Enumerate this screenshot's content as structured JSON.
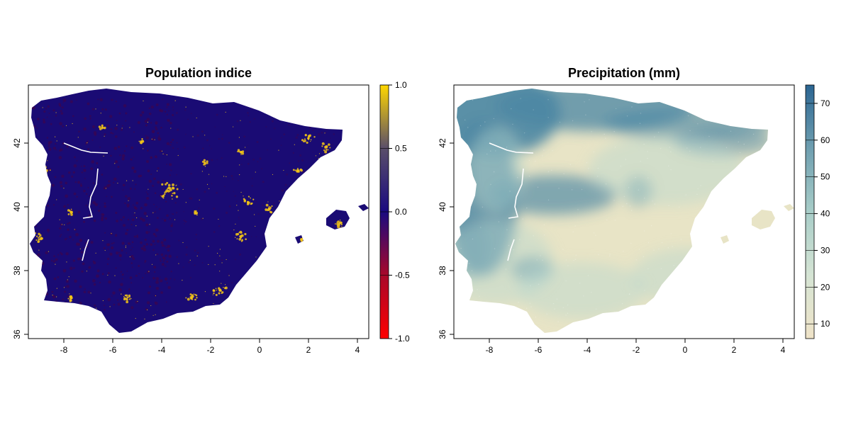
{
  "panels": [
    {
      "title": "Population indice",
      "x_ticks": [
        "-8",
        "-6",
        "-4",
        "-2",
        "0",
        "2",
        "4"
      ],
      "y_ticks": [
        "36",
        "38",
        "40",
        "42"
      ],
      "colorbar": {
        "ticks": [
          "-1.0",
          "-0.5",
          "0.0",
          "0.5",
          "1.0"
        ],
        "colors": [
          "#ff0000",
          "#a8082a",
          "#1a0a80",
          "#5a4e6a",
          "#ffd700"
        ]
      },
      "map_colors": {
        "land": "#1a0b74",
        "dark_patch": "#3a0650",
        "hot": "#f2c418"
      }
    },
    {
      "title": "Precipitation (mm)",
      "x_ticks": [
        "-8",
        "-6",
        "-4",
        "-2",
        "0",
        "2",
        "4"
      ],
      "y_ticks": [
        "36",
        "38",
        "40",
        "42"
      ],
      "colorbar": {
        "ticks": [
          "10",
          "20",
          "30",
          "40",
          "50",
          "60",
          "70"
        ],
        "colors": [
          "#efe3c8",
          "#d5e4d4",
          "#a8cdc8",
          "#6f9fb0",
          "#2b6592"
        ]
      },
      "map_colors": {
        "land": "#e8e4c6",
        "wet": "#4a86a3",
        "mid": "#b9d6cf"
      }
    }
  ]
}
